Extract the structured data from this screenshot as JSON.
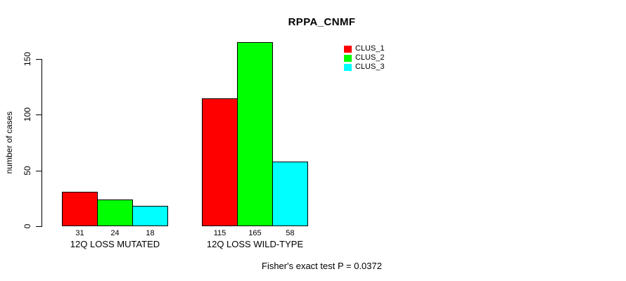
{
  "chart_data": {
    "type": "bar",
    "title": "RPPA_CNMF",
    "ylabel": "number of cases",
    "xlabel": "",
    "categories": [
      "12Q LOSS MUTATED",
      "12Q LOSS WILD-TYPE"
    ],
    "series": [
      {
        "name": "CLUS_1",
        "color": "#ff0000",
        "values": [
          31,
          115
        ]
      },
      {
        "name": "CLUS_2",
        "color": "#00ff00",
        "values": [
          24,
          165
        ]
      },
      {
        "name": "CLUS_3",
        "color": "#00ffff",
        "values": [
          18,
          58
        ]
      }
    ],
    "bar_value_labels": [
      [
        31,
        24,
        18
      ],
      [
        115,
        165,
        58
      ]
    ],
    "yticks": [
      0,
      50,
      100,
      150
    ],
    "ylim": [
      0,
      165
    ],
    "grid": false,
    "legend_position": "top-right",
    "legend_entries": [
      "CLUS_1",
      "CLUS_2",
      "CLUS_3"
    ],
    "annotation": "Fisher's exact test P = 0.0372",
    "bar_border_color": "#000000",
    "background_color": "#ffffff"
  }
}
